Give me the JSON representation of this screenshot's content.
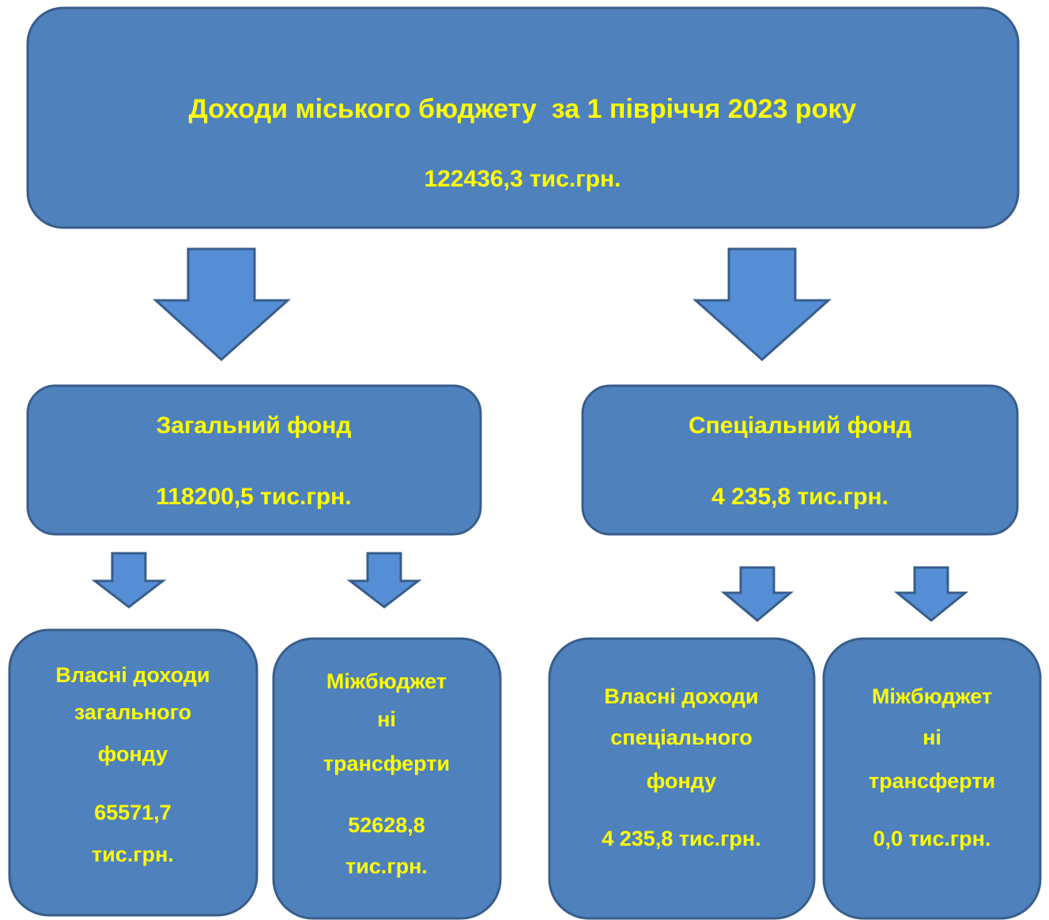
{
  "top": {
    "title": "Доходи міського бюджету  за 1 півріччя 2023 року",
    "amount": "122436,3 тис.грн."
  },
  "funds": [
    {
      "title": "Загальний фонд",
      "amount": "118200,5 тис.грн."
    },
    {
      "title": "Спеціальний фонд",
      "amount": "4 235,8 тис.грн."
    }
  ],
  "leaves": [
    {
      "lines": [
        "Власні доходи",
        "загального",
        "фонду",
        "65571,7",
        "тис.грн."
      ]
    },
    {
      "lines": [
        "Міжбюджет",
        "ні",
        "трансферти",
        "52628,8",
        "тис.грн."
      ]
    },
    {
      "lines": [
        "Власні доходи",
        "спеціального",
        "фонду",
        "4 235,8 тис.грн."
      ]
    },
    {
      "lines": [
        "Міжбюджет",
        "ні",
        "трансферти",
        "0,0 тис.грн."
      ]
    }
  ]
}
